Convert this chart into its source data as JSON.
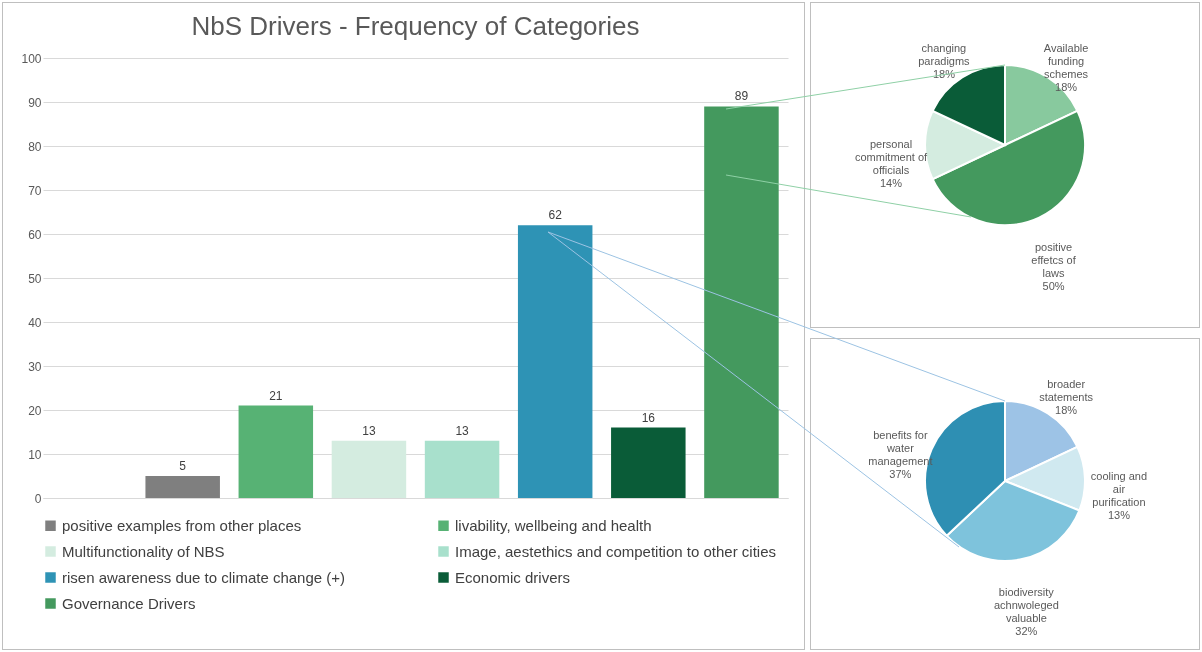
{
  "chart_data": [
    {
      "type": "bar",
      "title": "NbS Drivers - Frequency of Categories",
      "categories": [
        null,
        null,
        null,
        null,
        null,
        null,
        null,
        null
      ],
      "series": [
        {
          "name": "positive examples from other places",
          "color": "#7f7f7f",
          "values": [
            null,
            5,
            null,
            null,
            null,
            null,
            null,
            null
          ]
        },
        {
          "name": "livability, wellbeing and health",
          "color": "#57b274",
          "values": [
            null,
            null,
            21,
            null,
            null,
            null,
            null,
            null
          ]
        },
        {
          "name": "Multifunctionality of NBS",
          "color": "#d4ece0",
          "values": [
            null,
            null,
            null,
            13,
            null,
            null,
            null,
            null
          ]
        },
        {
          "name": "Image, aestethics and competition to other cities",
          "color": "#a8e0cc",
          "values": [
            null,
            null,
            null,
            null,
            13,
            null,
            null,
            null
          ]
        },
        {
          "name": "risen awareness due to climate change (+)",
          "color": "#2e93b5",
          "values": [
            null,
            null,
            null,
            null,
            null,
            62,
            null,
            null
          ]
        },
        {
          "name": "Economic drivers",
          "color": "#0a5c38",
          "values": [
            null,
            null,
            null,
            null,
            null,
            null,
            16,
            null
          ]
        },
        {
          "name": "Governance Drivers",
          "color": "#44995e",
          "values": [
            null,
            null,
            null,
            null,
            null,
            null,
            null,
            89
          ]
        }
      ],
      "ylim": [
        0,
        100
      ],
      "yticks": [
        0,
        10,
        20,
        30,
        40,
        50,
        60,
        70,
        80,
        90,
        100
      ],
      "grid": "y",
      "legend": "bottom",
      "data_labels": true
    },
    {
      "type": "pie",
      "categories": [
        "Available funding schemes",
        "positive effetcs of laws",
        "personal commitment of officials",
        "changing paradigms"
      ],
      "values": [
        18,
        50,
        14,
        18
      ],
      "value_labels": [
        "18%",
        "50%",
        "14%",
        "18%"
      ],
      "colors": [
        "#88c99e",
        "#44995e",
        "#d4ece0",
        "#0a5c38"
      ]
    },
    {
      "type": "pie",
      "categories": [
        "broader statements",
        "cooling and air purification",
        "biodiversity achnwoleged valuable",
        "benefits for water management"
      ],
      "values": [
        18,
        13,
        32,
        37
      ],
      "value_labels": [
        "18%",
        "13%",
        "32%",
        "37%"
      ],
      "colors": [
        "#9dc3e6",
        "#d0e9f0",
        "#7ec3dc",
        "#2e8fb3"
      ]
    }
  ]
}
